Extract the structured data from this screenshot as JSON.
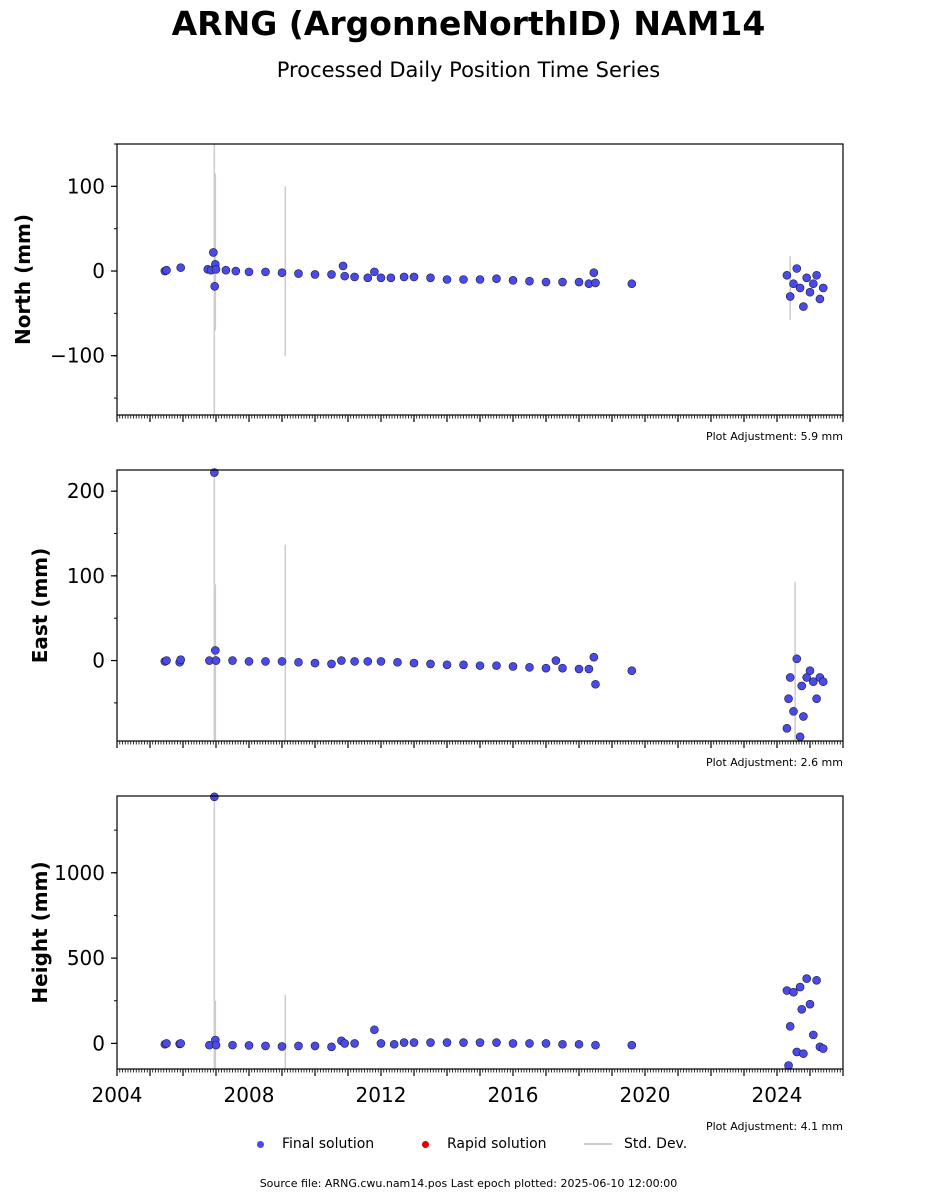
{
  "header": {
    "title": "ARNG (ArgonneNorthID) NAM14",
    "subtitle": "Processed Daily Position Time Series"
  },
  "footer": {
    "source": "Source file: ARNG.cwu.nam14.pos  Last epoch plotted: 2025-06-10 12:00:00"
  },
  "legend": {
    "final": "Final solution",
    "rapid": "Rapid solution",
    "std": "Std. Dev."
  },
  "colors": {
    "final": "#4a4ae8",
    "rapid": "#e00000",
    "std": "#cccccc",
    "edge": "#1a1a3a"
  },
  "chart_data": [
    {
      "type": "scatter",
      "ylabel": "North (mm)",
      "xlim": [
        2004,
        2026
      ],
      "ylim": [
        -170,
        150
      ],
      "yticks": [
        -100,
        0,
        100
      ],
      "adjustment": "Plot Adjustment: 5.9 mm",
      "series": [
        {
          "name": "Final solution",
          "x": [
            2005.45,
            2005.5,
            2005.93,
            2006.75,
            2006.85,
            2006.92,
            2006.96,
            2006.98,
            2007.0,
            2007.3,
            2007.6,
            2008.0,
            2008.5,
            2009.0,
            2009.5,
            2010.0,
            2010.5,
            2010.85,
            2010.9,
            2011.2,
            2011.6,
            2011.8,
            2012.0,
            2012.3,
            2012.7,
            2013.0,
            2013.5,
            2014.0,
            2014.5,
            2015.0,
            2015.5,
            2016.0,
            2016.5,
            2017.0,
            2017.5,
            2018.0,
            2018.3,
            2018.45,
            2018.5,
            2019.6,
            2024.3,
            2024.4,
            2024.5,
            2024.6,
            2024.7,
            2024.8,
            2024.9,
            2025.0,
            2025.1,
            2025.2,
            2025.3,
            2025.4
          ],
          "y": [
            0,
            1,
            4,
            2,
            1,
            22,
            -18,
            8,
            2,
            1,
            0,
            -1,
            -1,
            -2,
            -3,
            -4,
            -4,
            6,
            -6,
            -7,
            -8,
            -1,
            -8,
            -8,
            -7,
            -7,
            -8,
            -10,
            -10,
            -10,
            -9,
            -11,
            -12,
            -13,
            -13,
            -13,
            -15,
            -2,
            -14,
            -15,
            -5,
            -30,
            -15,
            3,
            -20,
            -42,
            -8,
            -25,
            -15,
            -5,
            -33,
            -20
          ]
        },
        {
          "name": "Rapid solution",
          "x": [],
          "y": []
        }
      ],
      "std_dev": [
        {
          "x": 2006.95,
          "low": -170,
          "high": 150
        },
        {
          "x": 2006.98,
          "low": -70,
          "high": 115
        },
        {
          "x": 2009.1,
          "low": -100,
          "high": 100
        },
        {
          "x": 2024.4,
          "low": -58,
          "high": 18
        }
      ]
    },
    {
      "type": "scatter",
      "ylabel": "East (mm)",
      "xlim": [
        2004,
        2026
      ],
      "ylim": [
        -95,
        225
      ],
      "yticks": [
        0,
        100,
        200
      ],
      "adjustment": "Plot Adjustment: 2.6 mm",
      "series": [
        {
          "name": "Final solution",
          "x": [
            2005.45,
            2005.5,
            2005.9,
            2005.93,
            2006.8,
            2006.95,
            2006.98,
            2007.0,
            2007.5,
            2008.0,
            2008.5,
            2009.0,
            2009.5,
            2010.0,
            2010.5,
            2010.8,
            2011.2,
            2011.6,
            2012.0,
            2012.5,
            2013.0,
            2013.5,
            2014.0,
            2014.5,
            2015.0,
            2015.5,
            2016.0,
            2016.5,
            2017.0,
            2017.3,
            2017.5,
            2018.0,
            2018.3,
            2018.45,
            2018.5,
            2019.6,
            2024.3,
            2024.35,
            2024.4,
            2024.5,
            2024.6,
            2024.7,
            2024.75,
            2024.8,
            2024.9,
            2025.0,
            2025.1,
            2025.2,
            2025.3,
            2025.4
          ],
          "y": [
            -1,
            0,
            -2,
            1,
            0,
            222,
            12,
            0,
            0,
            -1,
            -1,
            -1,
            -2,
            -3,
            -4,
            0,
            -1,
            -1,
            -1,
            -2,
            -3,
            -4,
            -5,
            -5,
            -6,
            -6,
            -7,
            -8,
            -9,
            0,
            -9,
            -10,
            -10,
            4,
            -28,
            -12,
            -80,
            -45,
            -20,
            -60,
            2,
            -90,
            -30,
            -66,
            -20,
            -12,
            -25,
            -45,
            -20,
            -25
          ]
        },
        {
          "name": "Rapid solution",
          "x": [],
          "y": []
        }
      ],
      "std_dev": [
        {
          "x": 2006.95,
          "low": -95,
          "high": 225
        },
        {
          "x": 2006.98,
          "low": -95,
          "high": 90
        },
        {
          "x": 2009.1,
          "low": -95,
          "high": 137
        },
        {
          "x": 2024.55,
          "low": -95,
          "high": 93
        }
      ]
    },
    {
      "type": "scatter",
      "ylabel": "Height (mm)",
      "xlim": [
        2004,
        2026
      ],
      "ylim": [
        -150,
        1450
      ],
      "yticks": [
        0,
        500,
        1000
      ],
      "xticks": [
        2004,
        2008,
        2012,
        2016,
        2020,
        2024
      ],
      "adjustment": "Plot Adjustment: 4.1 mm",
      "series": [
        {
          "name": "Final solution",
          "x": [
            2005.45,
            2005.5,
            2005.9,
            2005.93,
            2006.8,
            2006.95,
            2006.98,
            2007.0,
            2007.5,
            2008.0,
            2008.5,
            2009.0,
            2009.5,
            2010.0,
            2010.5,
            2010.8,
            2010.9,
            2011.2,
            2011.8,
            2012.0,
            2012.4,
            2012.7,
            2013.0,
            2013.5,
            2014.0,
            2014.5,
            2015.0,
            2015.5,
            2016.0,
            2016.5,
            2017.0,
            2017.5,
            2018.0,
            2018.5,
            2019.6,
            2024.3,
            2024.35,
            2024.4,
            2024.5,
            2024.6,
            2024.7,
            2024.75,
            2024.8,
            2024.9,
            2025.0,
            2025.1,
            2025.2,
            2025.3,
            2025.4
          ],
          "y": [
            -5,
            0,
            -3,
            0,
            -10,
            1445,
            20,
            -10,
            -10,
            -12,
            -15,
            -18,
            -15,
            -15,
            -20,
            15,
            0,
            0,
            80,
            0,
            -5,
            5,
            5,
            5,
            5,
            5,
            5,
            5,
            0,
            0,
            0,
            -5,
            -5,
            -10,
            -10,
            310,
            -130,
            100,
            300,
            -50,
            330,
            200,
            -60,
            380,
            230,
            50,
            370,
            -20,
            -30
          ]
        },
        {
          "name": "Rapid solution",
          "x": [],
          "y": []
        }
      ],
      "std_dev": [
        {
          "x": 2006.95,
          "low": -150,
          "high": 1450
        },
        {
          "x": 2006.98,
          "low": -150,
          "high": 250
        },
        {
          "x": 2009.1,
          "low": -150,
          "high": 285
        }
      ]
    }
  ]
}
